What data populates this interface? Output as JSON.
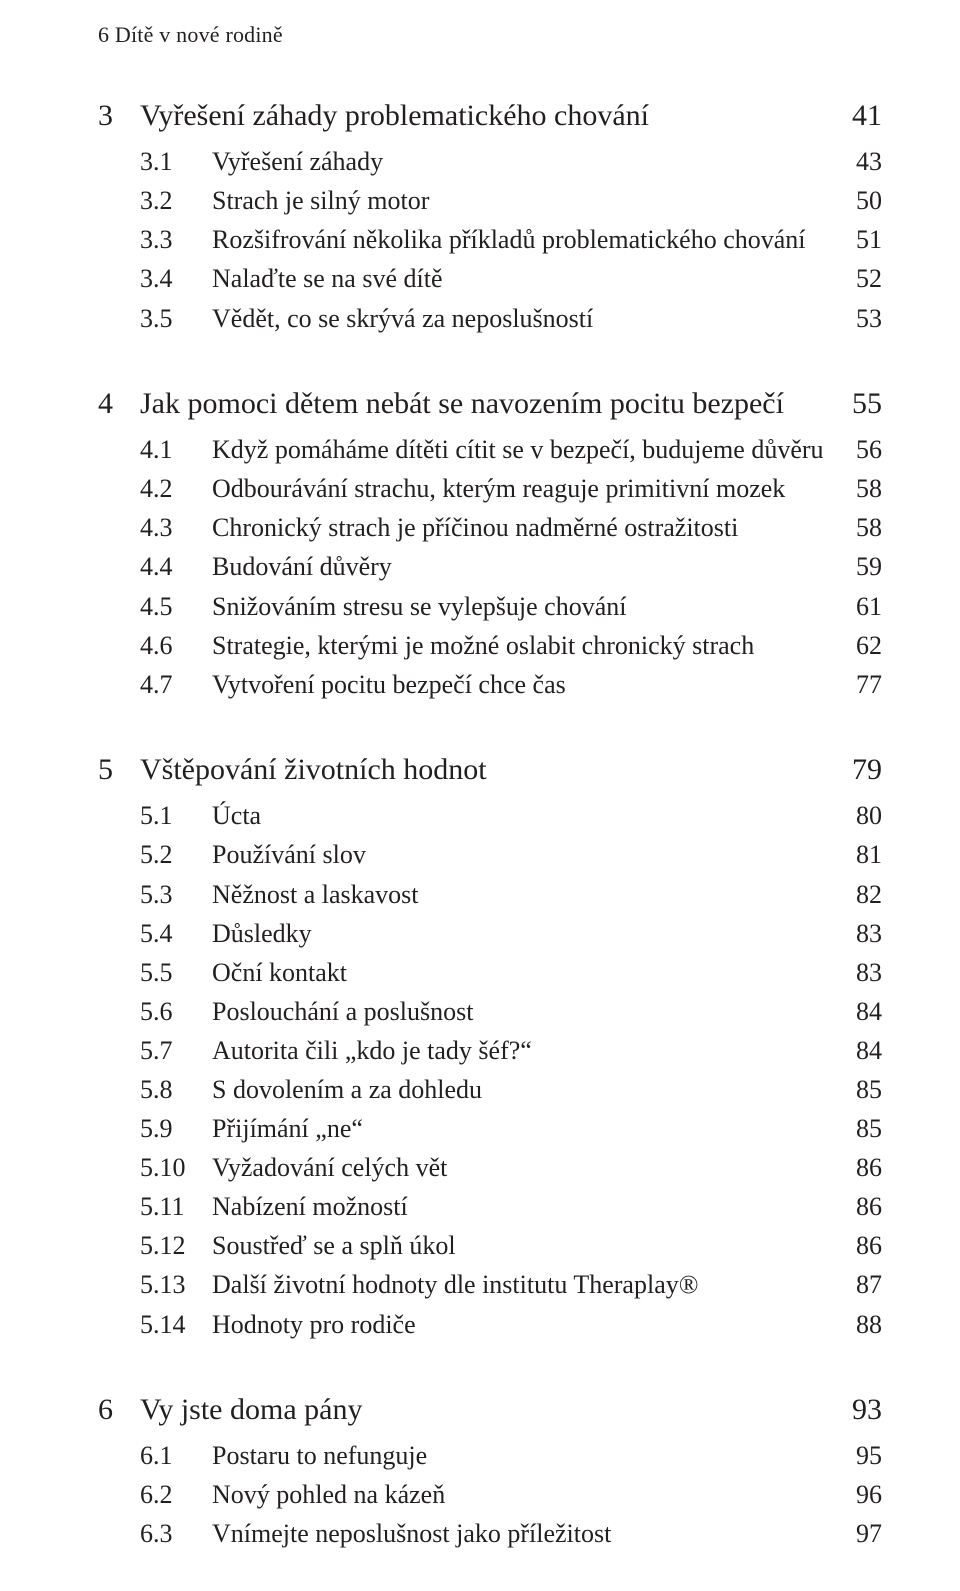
{
  "colors": {
    "text": "#231f20",
    "background": "#ffffff"
  },
  "typography": {
    "body_fontsize_pt": 19,
    "chapter_fontsize_pt": 22,
    "runhead_fontsize_pt": 16,
    "font_family": "Minion Pro / Garamond serif",
    "numerals": "oldstyle"
  },
  "running_head": {
    "page_number": "6",
    "title": "Dítě v nové rodině"
  },
  "chapters": [
    {
      "num": "3",
      "title": "Vyřešení záhady problematického chování",
      "page": "41",
      "subs": [
        {
          "num": "3.1",
          "title": "Vyřešení záhady",
          "page": "43"
        },
        {
          "num": "3.2",
          "title": "Strach je silný motor",
          "page": "50"
        },
        {
          "num": "3.3",
          "title": "Rozšifrování několika příkladů problematického chování",
          "page": "51"
        },
        {
          "num": "3.4",
          "title": "Nalaďte se na své dítě",
          "page": "52"
        },
        {
          "num": "3.5",
          "title": "Vědět, co se skrývá za neposlušností",
          "page": "53"
        }
      ]
    },
    {
      "num": "4",
      "title": "Jak pomoci dětem nebát se navozením pocitu bezpečí",
      "page": "55",
      "subs": [
        {
          "num": "4.1",
          "title": "Když pomáháme dítěti cítit se v bezpečí, budujeme důvěru",
          "page": "56"
        },
        {
          "num": "4.2",
          "title": "Odbourávání strachu, kterým reaguje primitivní mozek",
          "page": "58"
        },
        {
          "num": "4.3",
          "title": "Chronický strach je příčinou nadměrné ostražitosti",
          "page": "58"
        },
        {
          "num": "4.4",
          "title": "Budování důvěry",
          "page": "59"
        },
        {
          "num": "4.5",
          "title": "Snižováním stresu se vylepšuje chování",
          "page": "61"
        },
        {
          "num": "4.6",
          "title": "Strategie, kterými je možné oslabit chronický strach",
          "page": "62"
        },
        {
          "num": "4.7",
          "title": "Vytvoření pocitu bezpečí chce čas",
          "page": "77"
        }
      ]
    },
    {
      "num": "5",
      "title": "Vštěpování životních hodnot",
      "page": "79",
      "subs": [
        {
          "num": "5.1",
          "title": "Úcta",
          "page": "80"
        },
        {
          "num": "5.2",
          "title": "Používání slov",
          "page": "81"
        },
        {
          "num": "5.3",
          "title": "Něžnost a laskavost",
          "page": "82"
        },
        {
          "num": "5.4",
          "title": "Důsledky",
          "page": "83"
        },
        {
          "num": "5.5",
          "title": "Oční kontakt",
          "page": "83"
        },
        {
          "num": "5.6",
          "title": "Poslouchání a poslušnost",
          "page": "84"
        },
        {
          "num": "5.7",
          "title": "Autorita čili „kdo je tady šéf?“",
          "page": "84"
        },
        {
          "num": "5.8",
          "title": "S dovolením a za dohledu",
          "page": "85"
        },
        {
          "num": "5.9",
          "title": "Přijímání „ne“",
          "page": "85"
        },
        {
          "num": "5.10",
          "title": "Vyžadování celých vět",
          "page": "86"
        },
        {
          "num": "5.11",
          "title": "Nabízení možností",
          "page": "86"
        },
        {
          "num": "5.12",
          "title": "Soustřeď se a splň úkol",
          "page": "86"
        },
        {
          "num": "5.13",
          "title": "Další životní hodnoty dle institutu Theraplay®",
          "page": "87"
        },
        {
          "num": "5.14",
          "title": "Hodnoty pro rodiče",
          "page": "88"
        }
      ]
    },
    {
      "num": "6",
      "title": "Vy jste doma pány",
      "page": "93",
      "subs": [
        {
          "num": "6.1",
          "title": "Postaru to nefunguje",
          "page": "95"
        },
        {
          "num": "6.2",
          "title": "Nový pohled na kázeň",
          "page": "96"
        },
        {
          "num": "6.3",
          "title": "Vnímejte neposlušnost jako příležitost",
          "page": "97"
        }
      ]
    }
  ]
}
